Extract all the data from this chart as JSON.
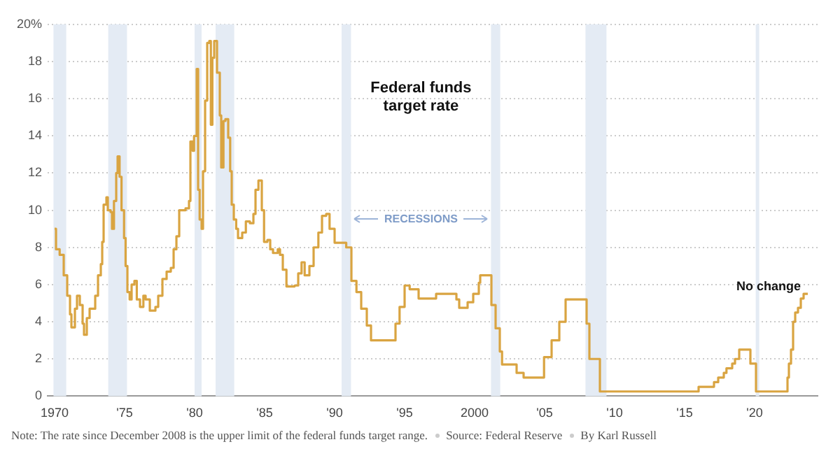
{
  "chart_data": {
    "type": "step",
    "title": "Federal funds target rate",
    "x": [
      1970.0,
      1970.1,
      1970.36,
      1970.65,
      1970.9,
      1971.1,
      1971.2,
      1971.45,
      1971.6,
      1971.8,
      1972.0,
      1972.1,
      1972.3,
      1972.5,
      1972.9,
      1973.1,
      1973.3,
      1973.4,
      1973.5,
      1973.7,
      1973.8,
      1974.0,
      1974.1,
      1974.24,
      1974.4,
      1974.5,
      1974.64,
      1974.78,
      1974.96,
      1975.07,
      1975.2,
      1975.36,
      1975.5,
      1975.7,
      1975.87,
      1976.1,
      1976.34,
      1976.5,
      1976.8,
      1977.2,
      1977.4,
      1977.7,
      1978.0,
      1978.3,
      1978.5,
      1978.7,
      1978.9,
      1979.35,
      1979.6,
      1979.7,
      1979.86,
      1979.96,
      1980.15,
      1980.25,
      1980.36,
      1980.5,
      1980.6,
      1980.75,
      1980.9,
      1981.05,
      1981.16,
      1981.27,
      1981.4,
      1981.6,
      1981.8,
      1981.9,
      1982.06,
      1982.2,
      1982.4,
      1982.54,
      1982.65,
      1982.8,
      1982.97,
      1983.1,
      1983.4,
      1983.66,
      1983.95,
      1984.2,
      1984.35,
      1984.56,
      1984.8,
      1984.96,
      1985.2,
      1985.4,
      1985.6,
      1985.94,
      1986.1,
      1986.3,
      1986.56,
      1987.14,
      1987.4,
      1987.64,
      1987.86,
      1988.2,
      1988.5,
      1988.84,
      1989.1,
      1989.4,
      1989.64,
      1990.0,
      1990.83,
      1991.2,
      1991.56,
      1991.9,
      1992.3,
      1992.6,
      1994.1,
      1994.35,
      1994.64,
      1995.0,
      1995.36,
      1996.0,
      1997.25,
      1998.7,
      1998.9,
      1999.5,
      1999.9,
      2000.3,
      2000.4,
      2001.0,
      2001.2,
      2001.5,
      2001.8,
      2001.96,
      2002.8,
      2003.0,
      2003.5,
      2004.5,
      2004.96,
      2005.5,
      2006.05,
      2006.5,
      2007.7,
      2008.0,
      2008.2,
      2008.7,
      2008.95,
      2015.94,
      2016.0,
      2016.9,
      2017.1,
      2017.4,
      2017.8,
      2017.99,
      2018.4,
      2018.6,
      2018.9,
      2019.5,
      2019.7,
      2019.9,
      2020.1,
      2022.17,
      2022.35,
      2022.45,
      2022.6,
      2022.75,
      2022.9,
      2023.1,
      2023.3,
      2023.5,
      2023.8
    ],
    "series": [
      {
        "color": "#d9a441",
        "values": [
          9.0,
          7.9,
          7.6,
          6.5,
          5.4,
          4.4,
          3.7,
          4.7,
          5.4,
          4.9,
          3.9,
          3.3,
          4.2,
          4.7,
          5.4,
          6.5,
          7.1,
          8.3,
          10.3,
          10.7,
          10.0,
          9.9,
          9.0,
          10.5,
          12.0,
          12.9,
          11.8,
          10.0,
          8.5,
          7.0,
          5.6,
          5.2,
          6.0,
          6.2,
          5.2,
          4.8,
          5.4,
          5.2,
          4.6,
          4.8,
          5.4,
          6.3,
          6.7,
          6.9,
          7.9,
          8.6,
          10.0,
          10.1,
          10.5,
          13.7,
          13.2,
          14.0,
          17.6,
          11.1,
          9.5,
          9.0,
          12.1,
          15.9,
          19.0,
          19.1,
          14.6,
          18.2,
          19.1,
          17.4,
          15.1,
          12.3,
          14.8,
          14.9,
          13.9,
          12.1,
          10.3,
          9.5,
          9.0,
          8.5,
          8.8,
          9.4,
          9.3,
          9.8,
          11.1,
          11.6,
          10.0,
          8.3,
          8.4,
          7.9,
          7.7,
          7.9,
          7.6,
          6.8,
          5.9,
          5.95,
          6.6,
          7.2,
          6.5,
          7.0,
          8.0,
          8.8,
          9.7,
          9.8,
          9.0,
          8.25,
          8.0,
          6.2,
          5.6,
          4.7,
          3.8,
          3.0,
          3.0,
          3.9,
          4.8,
          5.95,
          5.75,
          5.25,
          5.5,
          5.2,
          4.75,
          5.05,
          5.5,
          6.1,
          6.5,
          6.5,
          4.9,
          3.65,
          2.4,
          1.7,
          1.7,
          1.25,
          1.0,
          1.0,
          2.1,
          3.0,
          4.0,
          5.2,
          5.2,
          3.9,
          2.0,
          2.0,
          0.25,
          0.25,
          0.5,
          0.5,
          0.75,
          1.0,
          1.25,
          1.5,
          1.75,
          2.0,
          2.5,
          2.5,
          1.75,
          1.75,
          0.25,
          0.25,
          1.0,
          1.75,
          2.5,
          4.0,
          4.5,
          4.75,
          5.25,
          5.5,
          5.5
        ]
      }
    ],
    "xlim": [
      1969.5,
      2024.5
    ],
    "xticks": [
      {
        "value": 1970,
        "label": "1970"
      },
      {
        "value": 1975,
        "label": "'75"
      },
      {
        "value": 1980,
        "label": "'80"
      },
      {
        "value": 1985,
        "label": "'85"
      },
      {
        "value": 1990,
        "label": "'90"
      },
      {
        "value": 1995,
        "label": "'95"
      },
      {
        "value": 2000,
        "label": "2000"
      },
      {
        "value": 2005,
        "label": "'05"
      },
      {
        "value": 2010,
        "label": "'10"
      },
      {
        "value": 2015,
        "label": "'15"
      },
      {
        "value": 2020,
        "label": "'20"
      }
    ],
    "ylim": [
      0,
      20
    ],
    "yticks": [
      0,
      2,
      4,
      6,
      8,
      10,
      12,
      14,
      16,
      18,
      {
        "value": 20,
        "label": "20%"
      }
    ],
    "grid": "y",
    "legend": false,
    "bands": [
      {
        "axis": "x",
        "from": 1969.92,
        "to": 1970.83,
        "color": "#e4ebf4"
      },
      {
        "axis": "x",
        "from": 1973.83,
        "to": 1975.17,
        "color": "#e4ebf4"
      },
      {
        "axis": "x",
        "from": 1980.0,
        "to": 1980.5,
        "color": "#e4ebf4"
      },
      {
        "axis": "x",
        "from": 1981.5,
        "to": 1982.83,
        "color": "#e4ebf4"
      },
      {
        "axis": "x",
        "from": 1990.5,
        "to": 1991.17,
        "color": "#e4ebf4"
      },
      {
        "axis": "x",
        "from": 2001.17,
        "to": 2001.83,
        "color": "#e4ebf4"
      },
      {
        "axis": "x",
        "from": 2007.92,
        "to": 2009.42,
        "color": "#e4ebf4"
      },
      {
        "axis": "x",
        "from": 2020.08,
        "to": 2020.33,
        "color": "#e4ebf4"
      }
    ],
    "annotations": [
      "RECESSIONS",
      {
        "text": "No change",
        "x": 2023.3,
        "y": 5.9
      },
      "Note: The rate since December 2008 is the upper limit of the federal funds target range.",
      "Source: Federal Reserve",
      "By Karl Russell"
    ]
  }
}
